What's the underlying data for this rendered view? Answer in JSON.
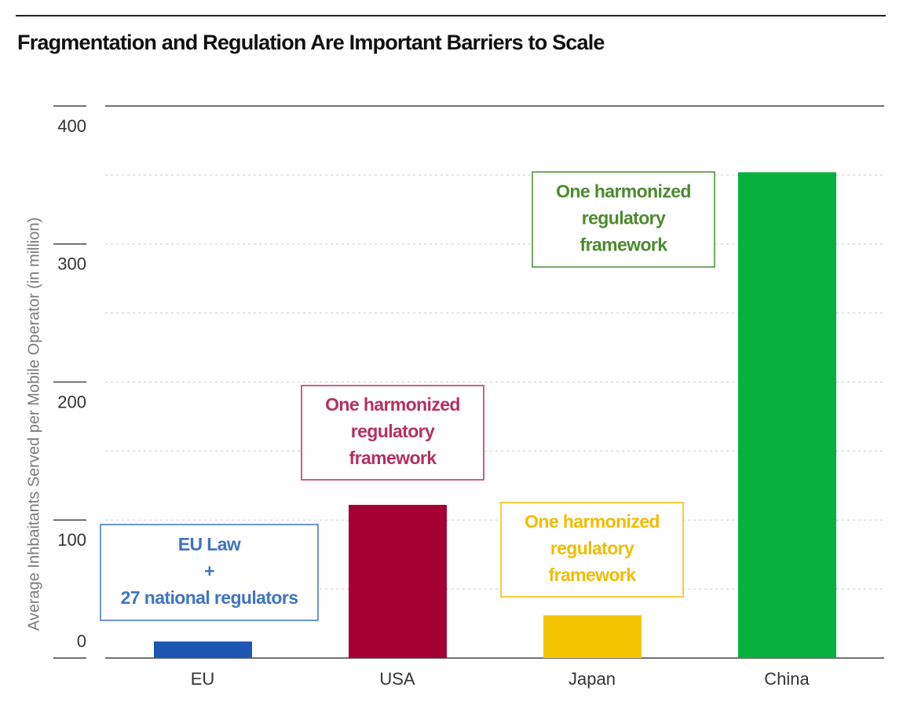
{
  "chart_data": {
    "type": "bar",
    "title": "Fragmentation and Regulation Are Important Barriers to Scale",
    "y_label": "Average Inhbaitants Served per Mobile Operator (in million)",
    "categories": [
      "EU",
      "USA",
      "Japan",
      "China"
    ],
    "values": [
      12,
      111,
      31,
      352
    ],
    "colors": [
      "#1f56b4",
      "#a50034",
      "#f5c400",
      "#08b03e"
    ],
    "ylim": [
      0,
      400
    ],
    "yticks": [
      0,
      100,
      200,
      300,
      400
    ],
    "minor_yticks": [
      50,
      150,
      250,
      350
    ],
    "grid": true,
    "annotations": [
      {
        "lines": [
          "EU Law",
          "+",
          "27 national regulators"
        ],
        "color": "#3f74c0"
      },
      {
        "lines": [
          "One harmonized",
          "regulatory",
          "framework"
        ],
        "color": "#b5305e"
      },
      {
        "lines": [
          "One harmonized",
          "regulatory",
          "framework"
        ],
        "color": "#f2bc00"
      },
      {
        "lines": [
          "One harmonized",
          "regulatory",
          "framework"
        ],
        "color": "#4b8a2e"
      }
    ]
  }
}
